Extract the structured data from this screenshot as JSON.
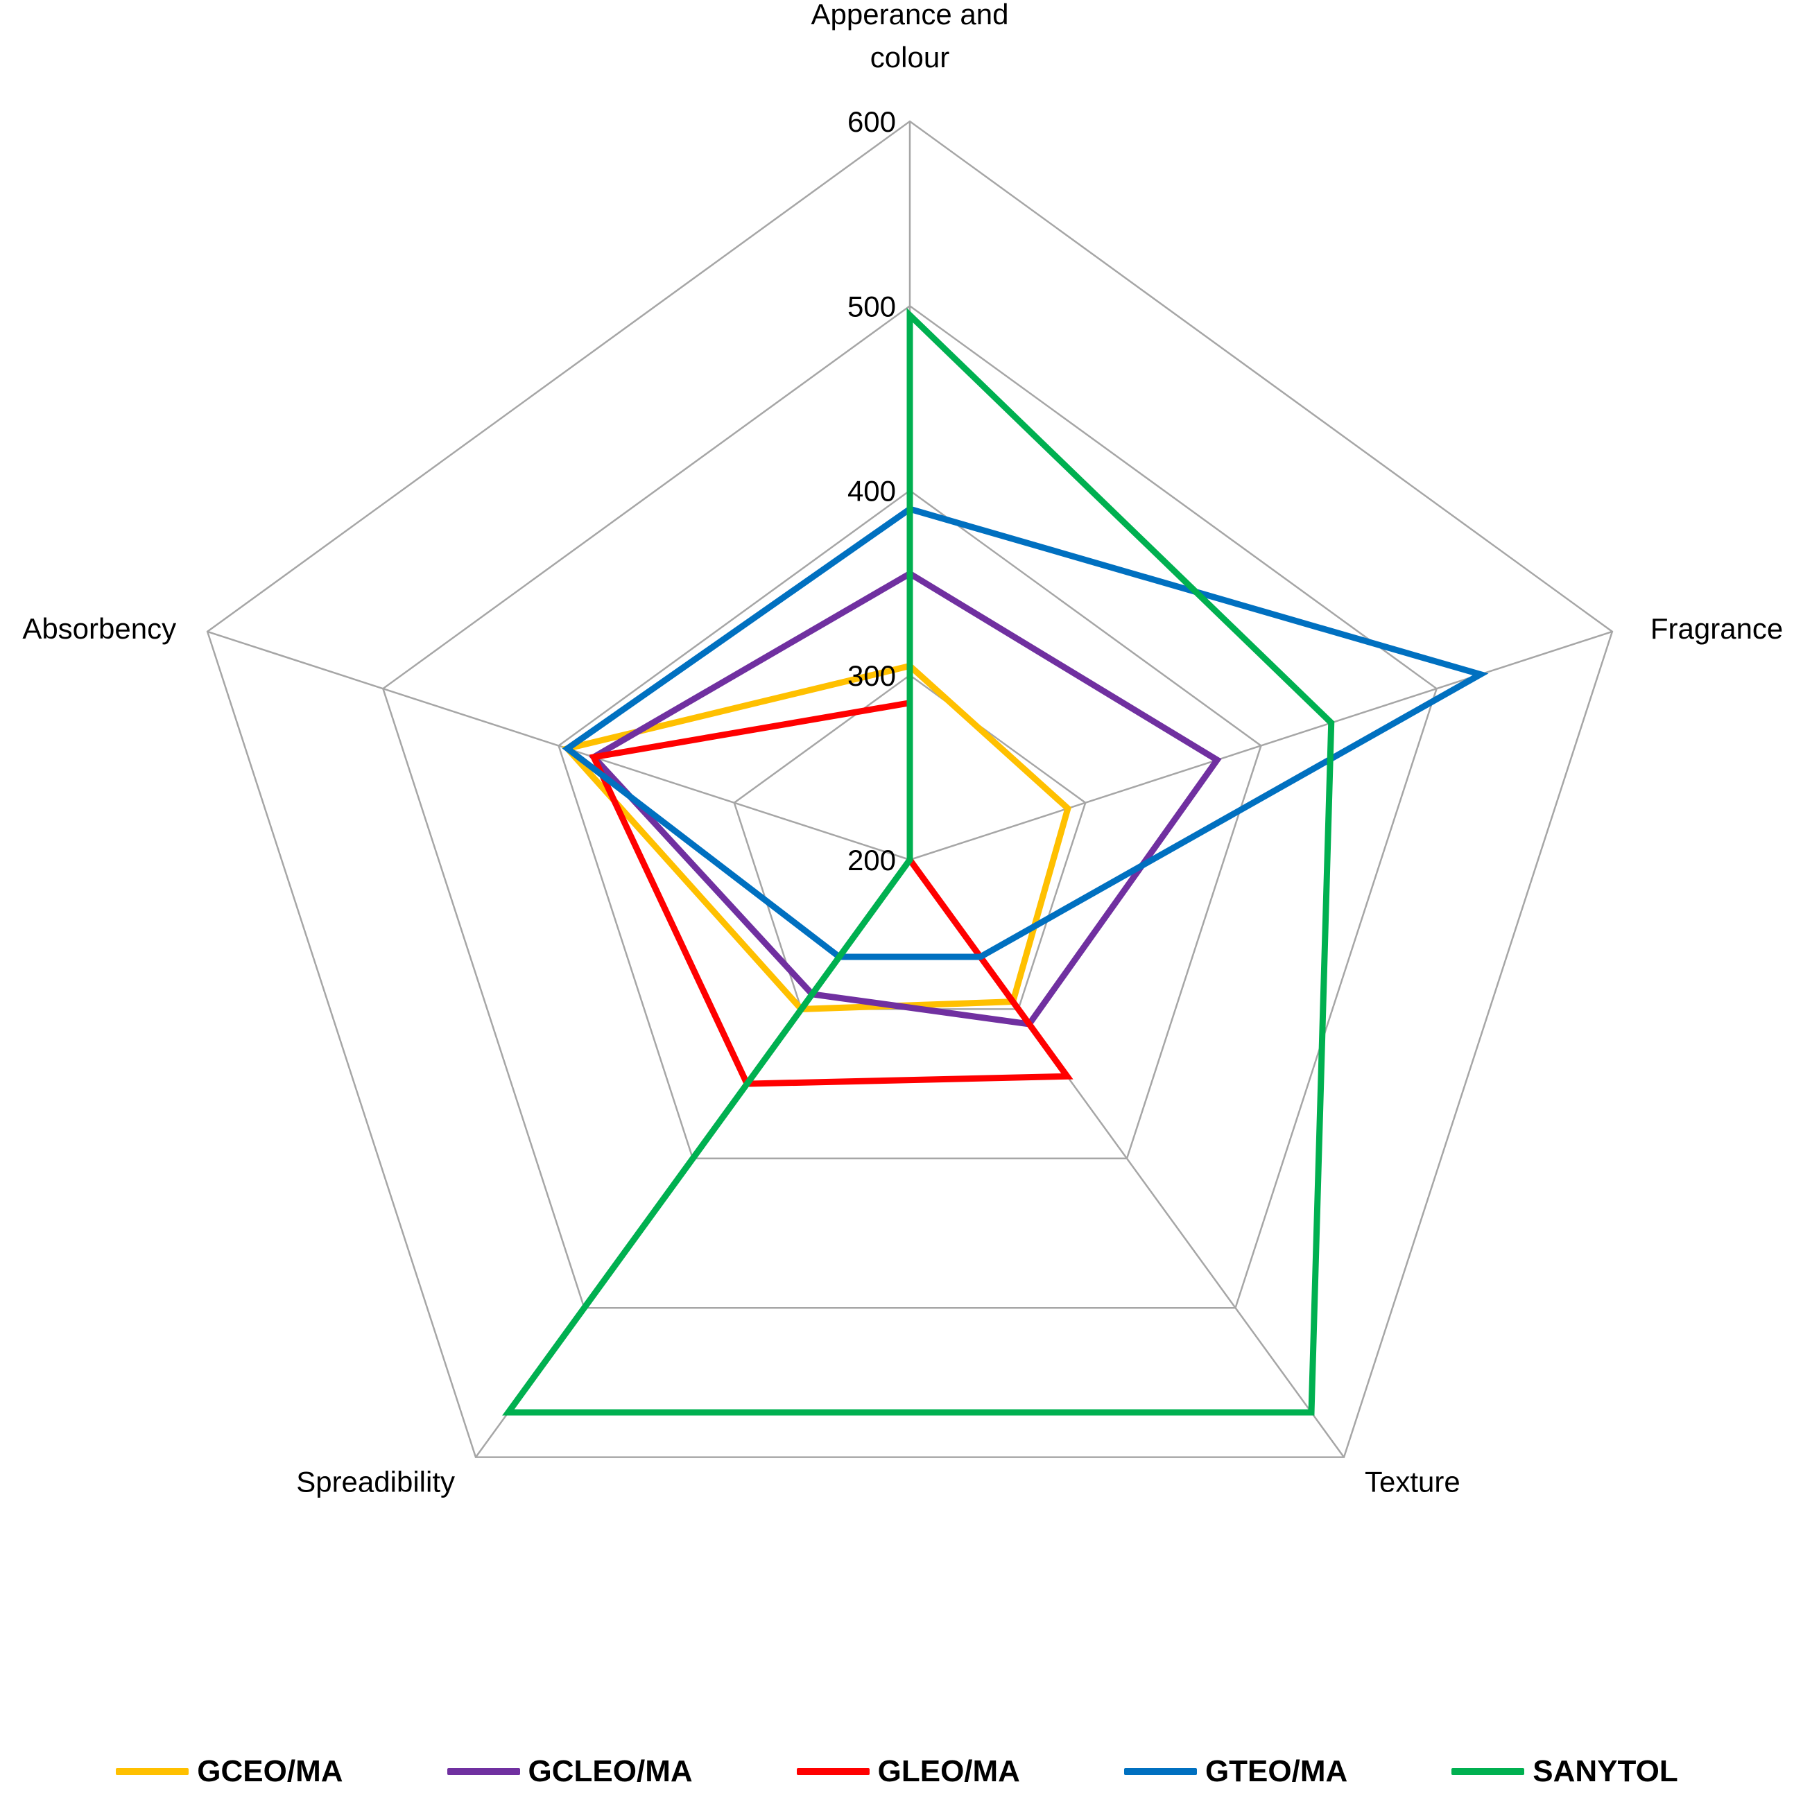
{
  "chart_data": {
    "type": "radar",
    "axes": [
      "Apperance and colour",
      "Fragrance",
      "Texture",
      "Spreadibility",
      "Absorbency"
    ],
    "rlim": [
      200,
      600
    ],
    "ticks": [
      200,
      300,
      400,
      500,
      600
    ],
    "grid": true,
    "legend_position": "bottom",
    "series": [
      {
        "name": "GCEO/MA",
        "color": "#FFC000",
        "values": [
          305,
          290,
          295,
          300,
          395
        ]
      },
      {
        "name": "GCLEO/MA",
        "color": "#7030A0",
        "values": [
          355,
          375,
          310,
          290,
          380
        ]
      },
      {
        "name": "GLEO/MA",
        "color": "#FF0000",
        "values": [
          285,
          200,
          345,
          350,
          380
        ]
      },
      {
        "name": "GTEO/MA",
        "color": "#0070C0",
        "values": [
          390,
          525,
          265,
          265,
          395
        ]
      },
      {
        "name": "SANYTOL",
        "color": "#00B050",
        "values": [
          495,
          440,
          570,
          570,
          200
        ]
      }
    ]
  }
}
